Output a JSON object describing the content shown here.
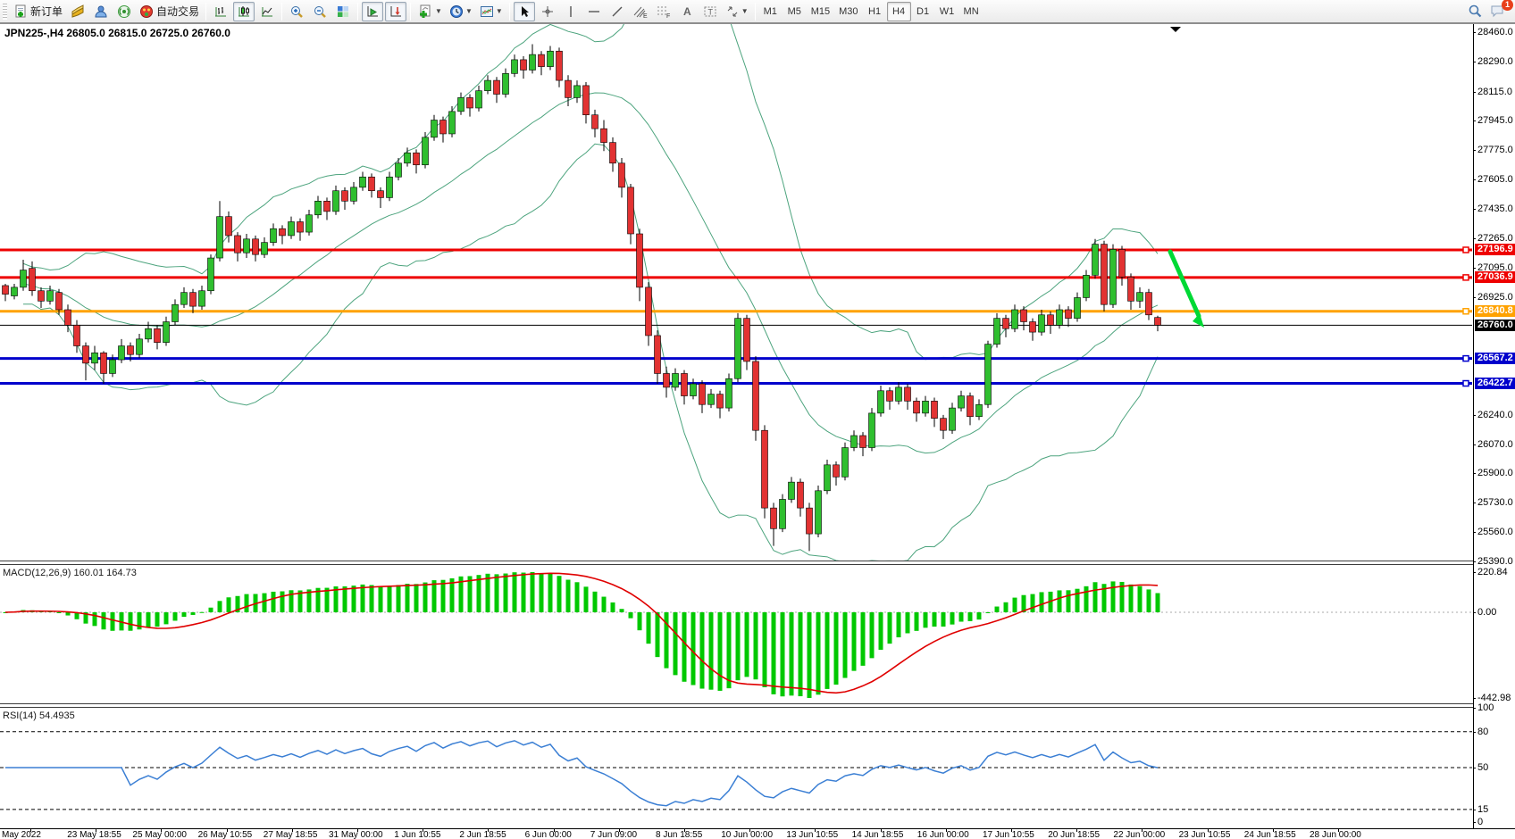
{
  "toolbar": {
    "new_order_label": "新订单",
    "autotrading_label": "自动交易",
    "notification_count": "1",
    "timeframes": [
      "M1",
      "M5",
      "M15",
      "M30",
      "H1",
      "H4",
      "D1",
      "W1",
      "MN"
    ],
    "active_timeframe": "H4",
    "icons": [
      "new-order-icon",
      "market-watch-icon",
      "navigator-icon",
      "signals-icon",
      "autotrading-icon",
      "bar-chart-icon",
      "candlestick-chart-icon",
      "line-chart-icon",
      "zoom-in-icon",
      "zoom-out-icon",
      "tile-windows-icon",
      "auto-scroll-icon",
      "chart-shift-icon",
      "indicators-icon",
      "periods-icon",
      "templates-icon",
      "cursor-icon",
      "crosshair-icon",
      "vertical-line-icon",
      "horizontal-line-icon",
      "trendline-icon",
      "channel-icon",
      "fibonacci-icon",
      "text-icon",
      "text-label-icon",
      "arrows-icon",
      "search-icon",
      "chat-icon"
    ]
  },
  "chart": {
    "quote_line": "JPN225-,H4 26805.0 26815.0 26725.0 26760.0",
    "symbol": "JPN225-",
    "period": "H4",
    "ohlc": {
      "open": "26805.0",
      "high": "26815.0",
      "low": "26725.0",
      "close": "26760.0"
    },
    "price_axis": {
      "max_price": 28460,
      "min_price": 25390,
      "ticks": [
        28460.0,
        28290.0,
        28115.0,
        27945.0,
        27775.0,
        27605.0,
        27435.0,
        27265.0,
        27095.0,
        26925.0,
        26240.0,
        26070.0,
        25900.0,
        25730.0,
        25560.0,
        25390.0
      ]
    },
    "levels": [
      {
        "label": "27196.9",
        "value": 27196.9,
        "color": "#ee0000",
        "width": 3,
        "marker": true
      },
      {
        "label": "27036.9",
        "value": 27036.9,
        "color": "#ee0000",
        "width": 3,
        "marker": true
      },
      {
        "label": "26840.8",
        "value": 26840.8,
        "color": "#ffa200",
        "width": 3,
        "marker": true
      },
      {
        "label": "26760.0",
        "value": 26760.0,
        "color": "#000000",
        "width": 1,
        "marker": false
      },
      {
        "label": "26567.2",
        "value": 26567.2,
        "color": "#0000cc",
        "width": 3,
        "marker": true
      },
      {
        "label": "26422.7",
        "value": 26422.7,
        "color": "#0000cc",
        "width": 3,
        "marker": true
      }
    ],
    "annotation_arrow": {
      "color": "#00d935",
      "direction": "down-right"
    },
    "colors": {
      "bull": "#2fbf2f",
      "bear": "#e23232",
      "wick": "#000000",
      "bollinger": "#4da47e",
      "background": "#ffffff"
    }
  },
  "chart_data": {
    "type": "candlestick",
    "symbol": "JPN225-",
    "timeframe": "H4",
    "bollinger": {
      "period": 20,
      "deviation": 2
    },
    "candles": [
      [
        26990,
        27000,
        26900,
        26940
      ],
      [
        26930,
        27000,
        26910,
        26980
      ],
      [
        26980,
        27140,
        26960,
        27080
      ],
      [
        27090,
        27130,
        26930,
        26960
      ],
      [
        26960,
        26980,
        26860,
        26900
      ],
      [
        26900,
        26990,
        26880,
        26960
      ],
      [
        26950,
        26970,
        26820,
        26850
      ],
      [
        26850,
        26880,
        26720,
        26760
      ],
      [
        26760,
        26790,
        26600,
        26640
      ],
      [
        26640,
        26660,
        26440,
        26540
      ],
      [
        26540,
        26640,
        26500,
        26600
      ],
      [
        26600,
        26610,
        26420,
        26480
      ],
      [
        26480,
        26590,
        26460,
        26560
      ],
      [
        26560,
        26680,
        26540,
        26640
      ],
      [
        26640,
        26660,
        26550,
        26590
      ],
      [
        26590,
        26710,
        26570,
        26680
      ],
      [
        26680,
        26780,
        26660,
        26740
      ],
      [
        26740,
        26760,
        26620,
        26660
      ],
      [
        26660,
        26810,
        26640,
        26780
      ],
      [
        26780,
        26910,
        26760,
        26880
      ],
      [
        26880,
        26980,
        26860,
        26950
      ],
      [
        26950,
        26970,
        26830,
        26870
      ],
      [
        26870,
        26990,
        26850,
        26960
      ],
      [
        26960,
        27170,
        26940,
        27150
      ],
      [
        27150,
        27480,
        27130,
        27390
      ],
      [
        27390,
        27420,
        27240,
        27280
      ],
      [
        27280,
        27300,
        27130,
        27180
      ],
      [
        27180,
        27290,
        27150,
        27260
      ],
      [
        27260,
        27280,
        27130,
        27170
      ],
      [
        27170,
        27270,
        27150,
        27240
      ],
      [
        27240,
        27350,
        27220,
        27320
      ],
      [
        27320,
        27340,
        27230,
        27280
      ],
      [
        27280,
        27390,
        27260,
        27360
      ],
      [
        27360,
        27380,
        27250,
        27300
      ],
      [
        27300,
        27430,
        27280,
        27400
      ],
      [
        27400,
        27510,
        27380,
        27480
      ],
      [
        27480,
        27500,
        27370,
        27420
      ],
      [
        27420,
        27570,
        27400,
        27540
      ],
      [
        27540,
        27560,
        27430,
        27480
      ],
      [
        27480,
        27590,
        27460,
        27560
      ],
      [
        27560,
        27650,
        27540,
        27620
      ],
      [
        27620,
        27640,
        27500,
        27540
      ],
      [
        27540,
        27560,
        27440,
        27500
      ],
      [
        27500,
        27650,
        27480,
        27620
      ],
      [
        27620,
        27730,
        27600,
        27700
      ],
      [
        27700,
        27790,
        27680,
        27760
      ],
      [
        27760,
        27780,
        27640,
        27690
      ],
      [
        27690,
        27880,
        27670,
        27850
      ],
      [
        27850,
        27980,
        27830,
        27950
      ],
      [
        27950,
        27970,
        27820,
        27870
      ],
      [
        27870,
        28030,
        27850,
        28000
      ],
      [
        28000,
        28110,
        27980,
        28080
      ],
      [
        28080,
        28100,
        27970,
        28020
      ],
      [
        28020,
        28150,
        28000,
        28120
      ],
      [
        28120,
        28210,
        28100,
        28180
      ],
      [
        28180,
        28200,
        28050,
        28100
      ],
      [
        28100,
        28250,
        28080,
        28220
      ],
      [
        28220,
        28330,
        28200,
        28300
      ],
      [
        28300,
        28320,
        28190,
        28240
      ],
      [
        28240,
        28390,
        28220,
        28330
      ],
      [
        28330,
        28350,
        28210,
        28260
      ],
      [
        28260,
        28380,
        28240,
        28350
      ],
      [
        28350,
        28370,
        28140,
        28180
      ],
      [
        28180,
        28210,
        28030,
        28080
      ],
      [
        28080,
        28180,
        28050,
        28150
      ],
      [
        28150,
        28170,
        27930,
        27980
      ],
      [
        27980,
        28010,
        27850,
        27900
      ],
      [
        27900,
        27950,
        27770,
        27820
      ],
      [
        27820,
        27850,
        27650,
        27700
      ],
      [
        27700,
        27730,
        27500,
        27560
      ],
      [
        27560,
        27580,
        27230,
        27290
      ],
      [
        27290,
        27320,
        26900,
        26980
      ],
      [
        26980,
        27010,
        26640,
        26700
      ],
      [
        26700,
        26730,
        26420,
        26480
      ],
      [
        26480,
        26520,
        26340,
        26400
      ],
      [
        26400,
        26510,
        26380,
        26480
      ],
      [
        26480,
        26500,
        26300,
        26350
      ],
      [
        26350,
        26450,
        26330,
        26420
      ],
      [
        26420,
        26440,
        26250,
        26300
      ],
      [
        26300,
        26390,
        26280,
        26360
      ],
      [
        26360,
        26380,
        26220,
        26280
      ],
      [
        26280,
        26480,
        26260,
        26450
      ],
      [
        26450,
        26830,
        26430,
        26800
      ],
      [
        26800,
        26820,
        26500,
        26550
      ],
      [
        26550,
        26580,
        26090,
        26150
      ],
      [
        26150,
        26180,
        25640,
        25700
      ],
      [
        25700,
        25730,
        25480,
        25580
      ],
      [
        25580,
        25780,
        25560,
        25750
      ],
      [
        25750,
        25880,
        25730,
        25850
      ],
      [
        25850,
        25870,
        25650,
        25700
      ],
      [
        25700,
        25730,
        25450,
        25550
      ],
      [
        25550,
        25830,
        25530,
        25800
      ],
      [
        25800,
        25980,
        25780,
        25950
      ],
      [
        25950,
        25970,
        25830,
        25880
      ],
      [
        25880,
        26080,
        25860,
        26050
      ],
      [
        26050,
        26150,
        26030,
        26120
      ],
      [
        26120,
        26140,
        26000,
        26050
      ],
      [
        26050,
        26280,
        26030,
        26250
      ],
      [
        26250,
        26410,
        26230,
        26380
      ],
      [
        26380,
        26400,
        26270,
        26320
      ],
      [
        26320,
        26430,
        26300,
        26400
      ],
      [
        26400,
        26420,
        26270,
        26320
      ],
      [
        26320,
        26340,
        26200,
        26250
      ],
      [
        26250,
        26350,
        26230,
        26320
      ],
      [
        26320,
        26340,
        26170,
        26220
      ],
      [
        26220,
        26240,
        26100,
        26150
      ],
      [
        26150,
        26310,
        26130,
        26280
      ],
      [
        26280,
        26380,
        26260,
        26350
      ],
      [
        26350,
        26370,
        26180,
        26230
      ],
      [
        26230,
        26330,
        26210,
        26300
      ],
      [
        26300,
        26670,
        26280,
        26650
      ],
      [
        26650,
        26830,
        26630,
        26800
      ],
      [
        26800,
        26820,
        26690,
        26740
      ],
      [
        26740,
        26880,
        26720,
        26850
      ],
      [
        26850,
        26870,
        26730,
        26780
      ],
      [
        26780,
        26800,
        26670,
        26720
      ],
      [
        26720,
        26850,
        26700,
        26820
      ],
      [
        26820,
        26840,
        26710,
        26760
      ],
      [
        26760,
        26880,
        26740,
        26850
      ],
      [
        26850,
        26870,
        26750,
        26800
      ],
      [
        26800,
        26950,
        26780,
        26920
      ],
      [
        26920,
        27080,
        26900,
        27050
      ],
      [
        27050,
        27260,
        27030,
        27230
      ],
      [
        27230,
        27250,
        26840,
        26880
      ],
      [
        26880,
        27230,
        26860,
        27200
      ],
      [
        27200,
        27220,
        26990,
        27040
      ],
      [
        27040,
        27060,
        26850,
        26900
      ],
      [
        26900,
        26980,
        26860,
        26950
      ],
      [
        26950,
        26970,
        26790,
        26820
      ],
      [
        26805,
        26815,
        26725,
        26760
      ]
    ],
    "time_labels": [
      "May 2022",
      "23 May 18:55",
      "25 May 00:00",
      "26 May 10:55",
      "27 May 18:55",
      "31 May 00:00",
      "1 Jun 10:55",
      "2 Jun 18:55",
      "6 Jun 00:00",
      "7 Jun 09:00",
      "8 Jun 18:55",
      "10 Jun 00:00",
      "13 Jun 10:55",
      "14 Jun 18:55",
      "16 Jun 00:00",
      "17 Jun 10:55",
      "20 Jun 18:55",
      "22 Jun 00:00",
      "23 Jun 10:55",
      "24 Jun 18:55",
      "28 Jun 00:00"
    ]
  },
  "macd_panel": {
    "label": "MACD(12,26,9) 160.01 164.73",
    "name": "MACD",
    "params": "12,26,9",
    "main_value": "160.01",
    "signal_value": "164.73",
    "axis": [
      "220.84",
      "0.00",
      "-442.98"
    ],
    "axis_values": [
      220.84,
      0,
      -442.98
    ],
    "histogram_color": "#00c800",
    "signal_color": "#e00000"
  },
  "rsi_panel": {
    "label": "RSI(14) 54.4935",
    "name": "RSI",
    "params": "14",
    "value": "54.4935",
    "axis": [
      "100",
      "80",
      "50",
      "15",
      "0"
    ],
    "axis_values": [
      100,
      80,
      50,
      15,
      0
    ],
    "level_lines": [
      80,
      50,
      15
    ],
    "line_color": "#3b7fd4"
  }
}
